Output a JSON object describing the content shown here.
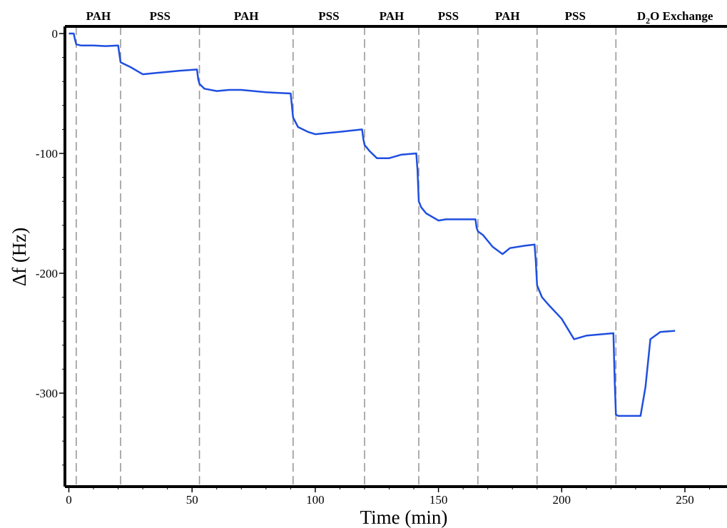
{
  "chart_data": {
    "type": "line",
    "title": "",
    "xlabel": "Time (min)",
    "ylabel": "Δf (Hz)",
    "xlim": [
      0,
      270
    ],
    "ylim": [
      -380,
      5
    ],
    "xticks": [
      0,
      50,
      100,
      150,
      200,
      250
    ],
    "yticks": [
      0,
      -100,
      -200,
      -300
    ],
    "ytick_labels": [
      "0",
      "-100",
      "-200",
      "-300"
    ],
    "grid": false,
    "line_color": "#1f4fe0",
    "divider_color": "#999999",
    "dividers": [
      3,
      21,
      53,
      91,
      120,
      142,
      166,
      190,
      222
    ],
    "phases": [
      {
        "label": "PAH",
        "x": 12
      },
      {
        "label": "PSS",
        "x": 37
      },
      {
        "label": "PAH",
        "x": 72
      },
      {
        "label": "PSS",
        "x": 105.5
      },
      {
        "label": "PAH",
        "x": 131
      },
      {
        "label": "PSS",
        "x": 154
      },
      {
        "label": "PAH",
        "x": 178
      },
      {
        "label": "PSS",
        "x": 205.5
      },
      {
        "label": "D",
        "sub": "2",
        "rest": "O Exchange",
        "x": 246
      }
    ],
    "series": [
      {
        "x": [
          0,
          2,
          2.5,
          3,
          5,
          10,
          15,
          20,
          20.5,
          21,
          22,
          25,
          30,
          35,
          40,
          45,
          52,
          52.5,
          53,
          55,
          60,
          65,
          70,
          80,
          90,
          90.5,
          91,
          93,
          97,
          100,
          105,
          110,
          119,
          119.5,
          120,
          122,
          125,
          130,
          135,
          141,
          141.5,
          142,
          143,
          145,
          150,
          153,
          160,
          165,
          165.5,
          166,
          168,
          172,
          176,
          179,
          185,
          189,
          189.5,
          190,
          192,
          195,
          200,
          205,
          210,
          221,
          221.5,
          222,
          223,
          225,
          230,
          232,
          234,
          236,
          240,
          246
        ],
        "y": [
          0,
          0,
          -5,
          -9,
          -10,
          -10,
          -10.5,
          -10,
          -17,
          -24,
          -25,
          -28,
          -34,
          -33,
          -32,
          -31,
          -30,
          -38,
          -42,
          -46,
          -48,
          -47,
          -47,
          -49,
          -50,
          -60,
          -70,
          -78,
          -82,
          -84,
          -83,
          -82,
          -80,
          -88,
          -93,
          -98,
          -104,
          -104,
          -101,
          -100,
          -114,
          -140,
          -145,
          -150,
          -156,
          -155,
          -155,
          -155,
          -162,
          -165,
          -168,
          -178,
          -184,
          -179,
          -177,
          -176,
          -190,
          -210,
          -220,
          -227,
          -238,
          -255,
          -252,
          -250,
          -290,
          -318,
          -319,
          -319,
          -319,
          -319,
          -295,
          -255,
          -249,
          -248
        ]
      }
    ]
  }
}
